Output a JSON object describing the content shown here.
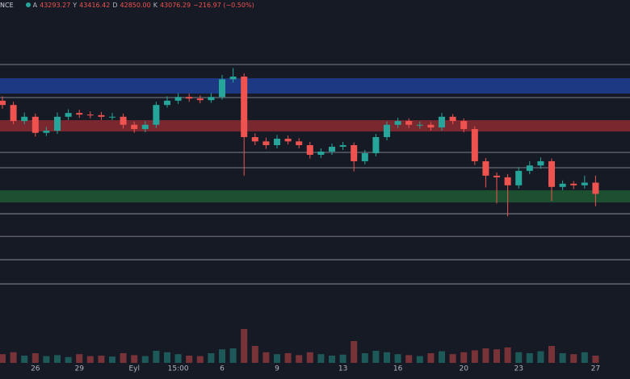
{
  "chart_data": {
    "type": "candlestick",
    "header": {
      "symbol": "NCE",
      "items": [
        {
          "label": "A",
          "value": "43293.27"
        },
        {
          "label": "Y",
          "value": "43416.42"
        },
        {
          "label": "D",
          "value": "42850.00"
        },
        {
          "label": "K",
          "value": "43076.29"
        }
      ],
      "change": "−216.97 (−0.50%)"
    },
    "categories": [
      null,
      null,
      null,
      "26",
      null,
      null,
      null,
      "29",
      null,
      null,
      null,
      null,
      "Eyl",
      null,
      null,
      null,
      "15:00",
      null,
      null,
      null,
      "6",
      null,
      null,
      null,
      null,
      "9",
      null,
      null,
      null,
      null,
      null,
      "13",
      null,
      null,
      null,
      null,
      "16",
      null,
      null,
      null,
      null,
      null,
      "20",
      null,
      null,
      null,
      null,
      "23",
      null,
      null,
      null,
      null,
      null,
      null,
      "27"
    ],
    "open": [
      44820,
      44740,
      44440,
      44520,
      44220,
      44260,
      44520,
      44590,
      44560,
      44550,
      44520,
      44520,
      44370,
      44290,
      44370,
      44740,
      44820,
      44890,
      44860,
      44830,
      44890,
      45220,
      45270,
      44140,
      44060,
      43990,
      44110,
      44060,
      43990,
      43810,
      43870,
      43960,
      43990,
      43690,
      43840,
      44140,
      44370,
      44440,
      44370,
      44370,
      44320,
      44520,
      44440,
      44290,
      43690,
      43420,
      43390,
      43240,
      43510,
      43610,
      43690,
      43210,
      43270,
      43240,
      43290
    ],
    "high": [
      44900,
      44800,
      44600,
      44580,
      44330,
      44600,
      44660,
      44650,
      44620,
      44610,
      44590,
      44580,
      44430,
      44440,
      44800,
      44900,
      44960,
      44950,
      44920,
      44960,
      45300,
      45430,
      45330,
      44210,
      44130,
      44180,
      44170,
      44120,
      44050,
      43930,
      44020,
      44050,
      44040,
      43900,
      44200,
      44430,
      44500,
      44490,
      44430,
      44420,
      44590,
      44570,
      44490,
      44340,
      43750,
      43480,
      43450,
      43580,
      43690,
      43760,
      43740,
      43330,
      43320,
      43420,
      43420
    ],
    "low": [
      44670,
      44380,
      44380,
      44150,
      44160,
      44200,
      44460,
      44500,
      44490,
      44460,
      44460,
      44300,
      44220,
      44230,
      44310,
      44690,
      44760,
      44800,
      44770,
      44780,
      44840,
      45160,
      43420,
      43990,
      43920,
      43930,
      44000,
      43930,
      43740,
      43750,
      43810,
      43900,
      43500,
      43630,
      43780,
      44080,
      44310,
      44310,
      44300,
      44260,
      44260,
      44380,
      44230,
      43620,
      43200,
      42900,
      42660,
      43180,
      43450,
      43550,
      42950,
      43150,
      43170,
      43180,
      42850
    ],
    "close": [
      44740,
      44440,
      44520,
      44220,
      44260,
      44520,
      44590,
      44560,
      44550,
      44520,
      44520,
      44370,
      44290,
      44370,
      44740,
      44820,
      44890,
      44860,
      44830,
      44890,
      45220,
      45270,
      44140,
      44060,
      43990,
      44110,
      44060,
      43990,
      43810,
      43870,
      43960,
      43990,
      43690,
      43840,
      44140,
      44370,
      44440,
      44370,
      44370,
      44320,
      44520,
      44440,
      44290,
      43690,
      43420,
      43390,
      43240,
      43510,
      43610,
      43690,
      43210,
      43270,
      43240,
      43290,
      43080
    ],
    "volume": [
      18,
      22,
      15,
      20,
      14,
      16,
      12,
      18,
      14,
      15,
      13,
      20,
      16,
      14,
      25,
      22,
      18,
      15,
      14,
      20,
      28,
      30,
      70,
      35,
      22,
      18,
      20,
      16,
      22,
      18,
      15,
      17,
      45,
      20,
      25,
      22,
      18,
      16,
      14,
      20,
      24,
      18,
      22,
      26,
      30,
      28,
      32,
      22,
      20,
      24,
      35,
      20,
      18,
      22,
      15
    ],
    "ylim": [
      40000,
      46700
    ],
    "vlim": [
      0,
      100
    ],
    "up_color": "#26a69a",
    "down_color": "#ef5350",
    "levels": [
      45495,
      44878,
      43854,
      43568,
      42709,
      42287,
      41851,
      41399
    ],
    "zones": [
      {
        "range": [
          44953,
          45239
        ],
        "color": "#1f3f95"
      },
      {
        "range": [
          44245,
          44456
        ],
        "color": "#8a2c30"
      },
      {
        "range": [
          42920,
          43146
        ],
        "color": "#1f5a34"
      }
    ]
  }
}
